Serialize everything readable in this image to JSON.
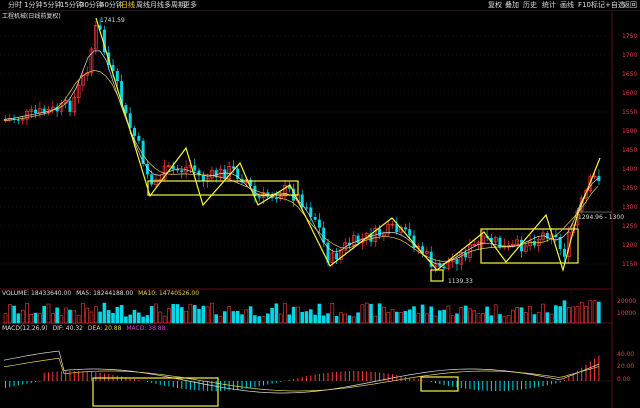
{
  "toolbar": {
    "left_items": [
      "分时",
      "1分钟",
      "5分钟",
      "15分钟",
      "30分钟",
      "60分钟",
      "日线",
      "周线",
      "月线",
      "多周期",
      "更多"
    ],
    "active_index": 6,
    "right_items": [
      "复权",
      "叠加",
      "历史",
      "统计",
      "画线",
      "F10",
      "标记",
      "+自选",
      "返回"
    ]
  },
  "stock_title": "工程机械(日线前复权)",
  "price_axis": {
    "labels": [
      "1750",
      "1700",
      "1650",
      "1600",
      "1550",
      "1500",
      "1450",
      "1400",
      "1350",
      "1300",
      "1250",
      "1200",
      "1150"
    ]
  },
  "annotations": {
    "high": "1741.59",
    "low": "1139.33",
    "last": "1294.96 - 1300"
  },
  "volume_indicator": {
    "volume_label": "VOLUME: 18433640.00",
    "ma5_label": "MA5: 18244188.00",
    "ma10_label": "MA10: 14740526.00",
    "axis_labels": [
      "20000",
      "10000"
    ]
  },
  "macd_indicator": {
    "title": "MACD(12,26,9)",
    "dif_label": "DIF: 40.32",
    "dea_label": "DEA: 20.88",
    "macd_label": "MACD: 38.88",
    "axis_labels": [
      "40.00",
      "20.00",
      "0.00"
    ]
  },
  "colors": {
    "up": "#ff3b3b",
    "down": "#00d8e8",
    "annotation": "#f5f542",
    "ma_white": "#dddddd",
    "ma_yellow": "#e8d24a",
    "text_red": "#e04040",
    "macd_purple": "#d040d0"
  }
}
